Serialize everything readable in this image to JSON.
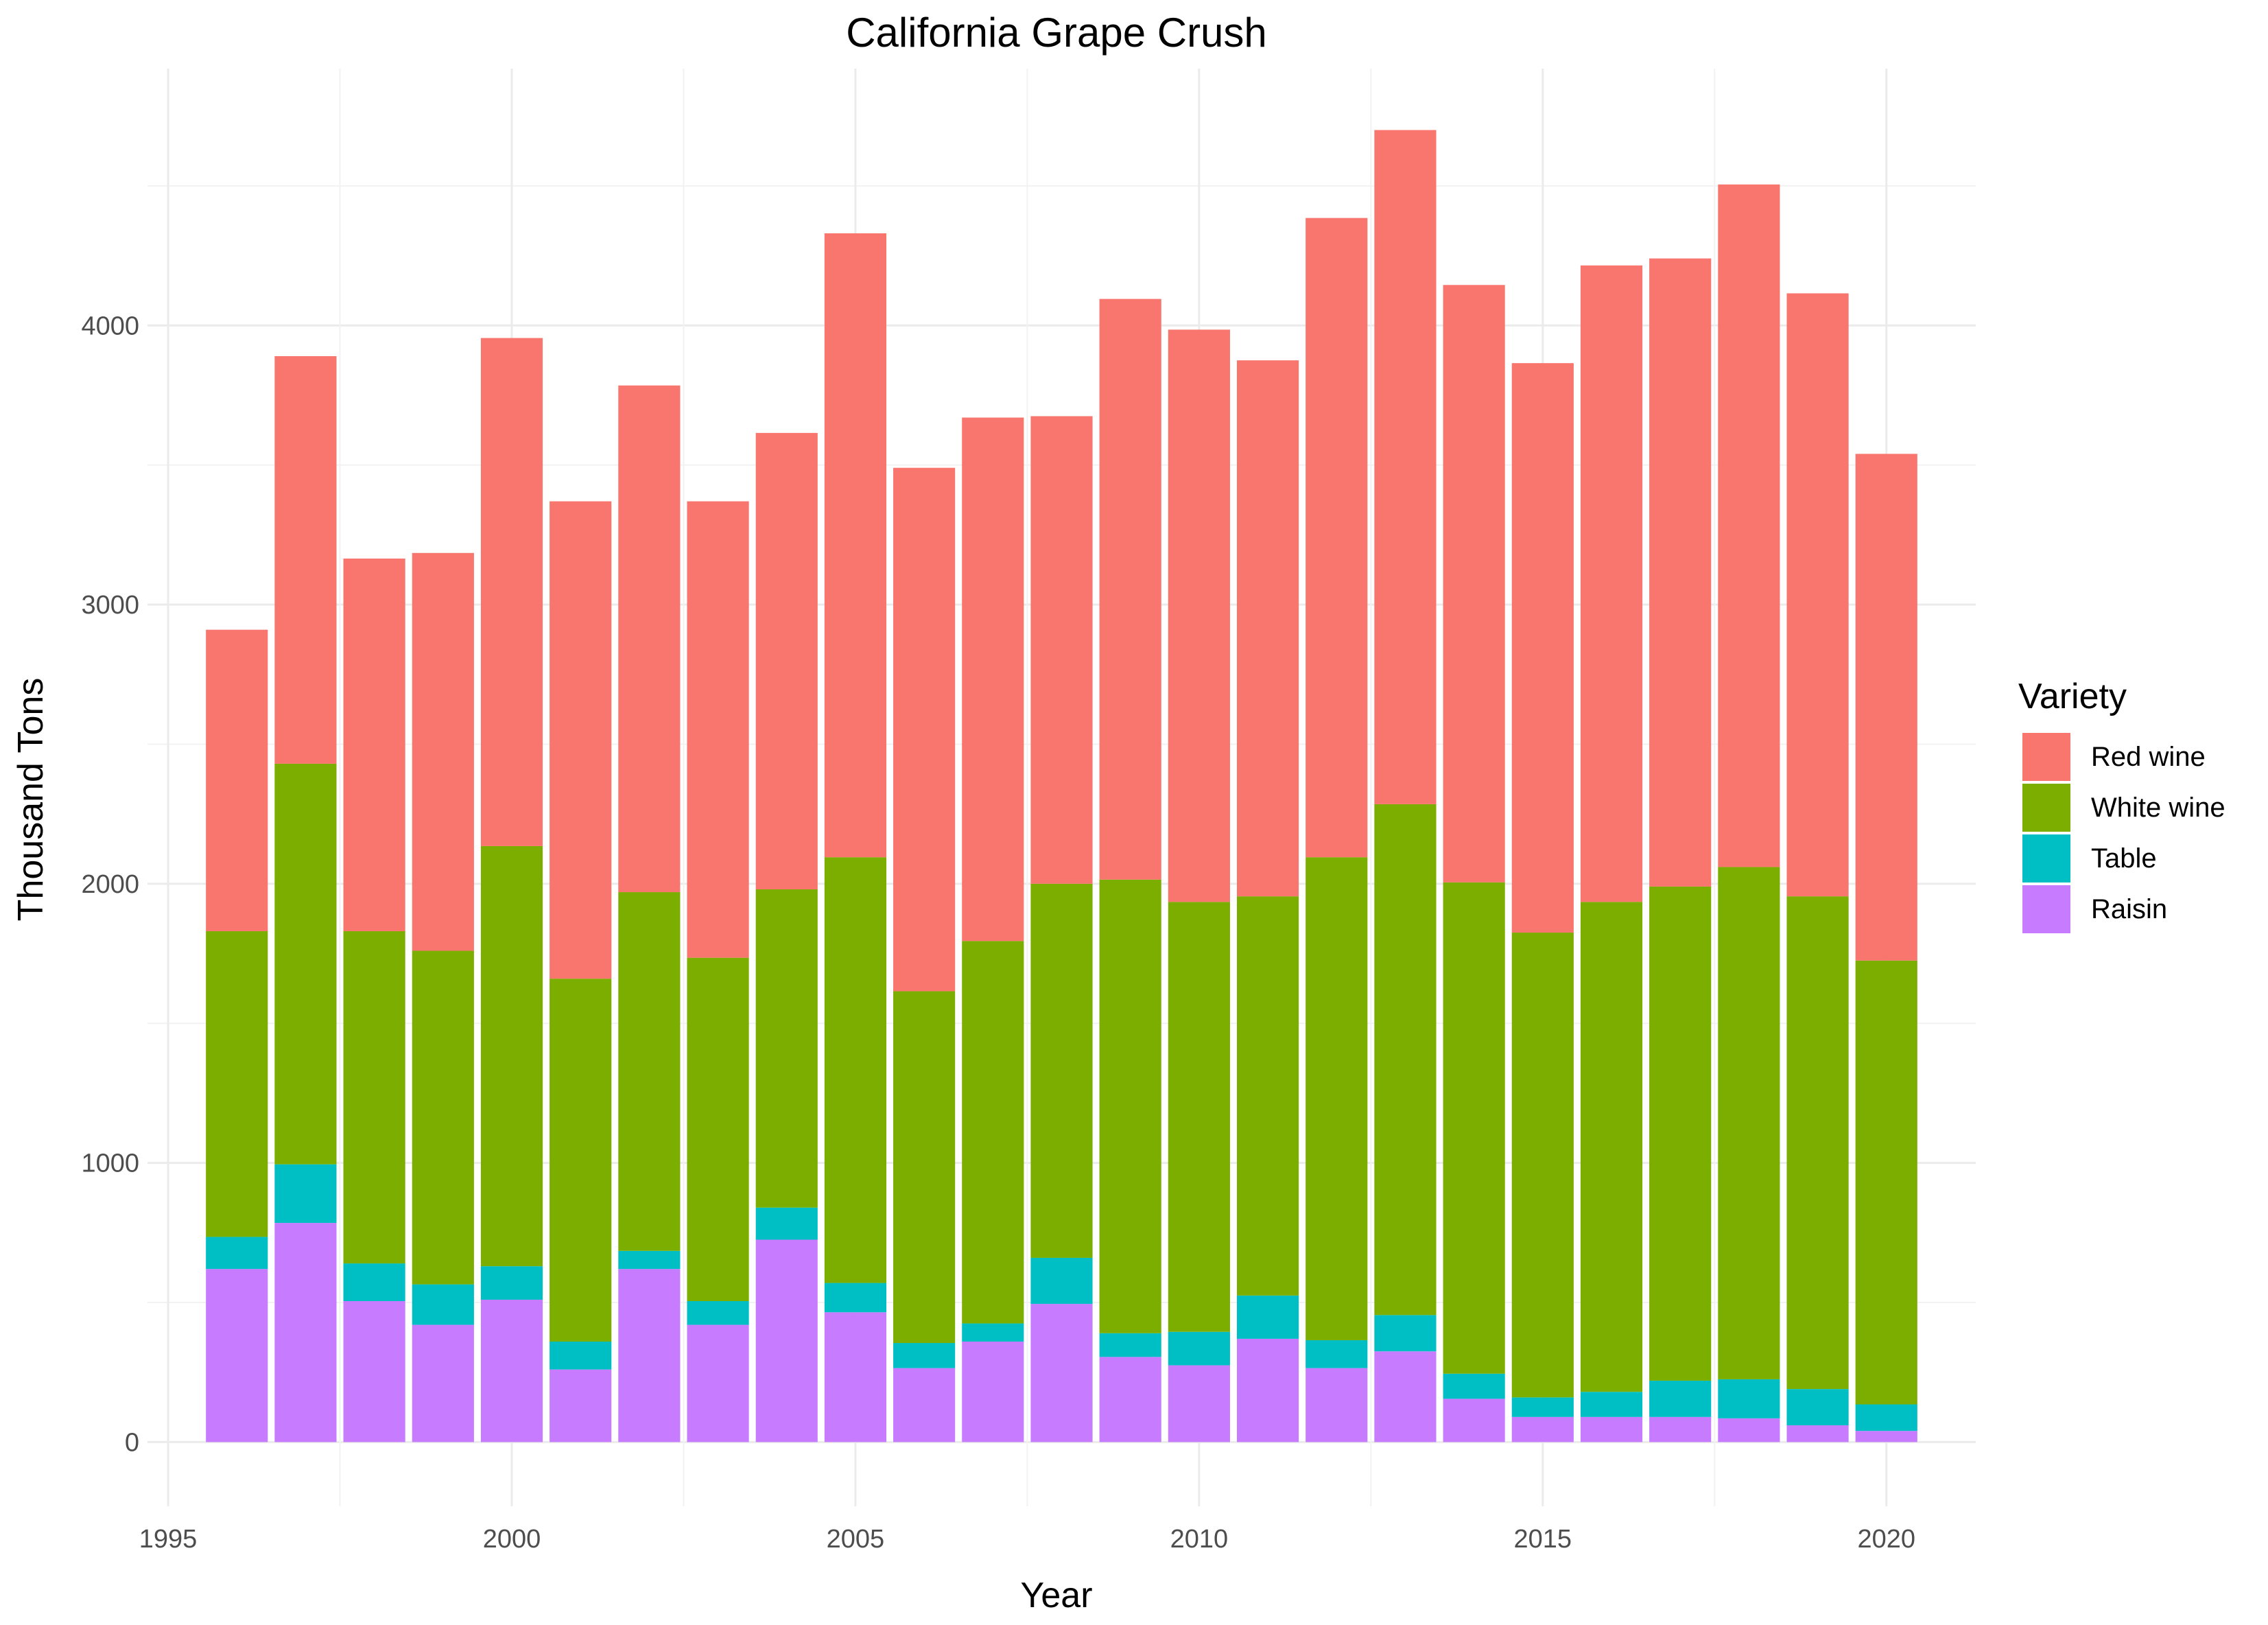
{
  "chart_data": {
    "type": "bar",
    "stacked": true,
    "title": "California Grape Crush",
    "xlabel": "Year",
    "ylabel": "Thousand Tons",
    "legend_title": "Variety",
    "legend_position": "right",
    "xlim": [
      1994.7,
      2021.3
    ],
    "ylim": [
      -230,
      4920
    ],
    "x_ticks": [
      1995,
      2000,
      2005,
      2010,
      2015,
      2020
    ],
    "y_ticks": [
      0,
      1000,
      2000,
      3000,
      4000
    ],
    "grid": true,
    "categories": [
      1996,
      1997,
      1998,
      1999,
      2000,
      2001,
      2002,
      2003,
      2004,
      2005,
      2006,
      2007,
      2008,
      2009,
      2010,
      2011,
      2012,
      2013,
      2014,
      2015,
      2016,
      2017,
      2018,
      2019,
      2020
    ],
    "series": [
      {
        "name": "Raisin",
        "color": "#C77CFF",
        "values": [
          620,
          785,
          505,
          420,
          510,
          260,
          620,
          420,
          725,
          465,
          265,
          360,
          495,
          305,
          275,
          370,
          265,
          325,
          155,
          90,
          90,
          90,
          85,
          60,
          40
        ]
      },
      {
        "name": "Table",
        "color": "#00BFC4",
        "values": [
          115,
          210,
          135,
          145,
          120,
          100,
          65,
          85,
          115,
          105,
          90,
          65,
          165,
          85,
          120,
          155,
          100,
          130,
          90,
          70,
          90,
          130,
          140,
          130,
          95
        ]
      },
      {
        "name": "White wine",
        "color": "#7CAE00",
        "values": [
          1095,
          1435,
          1190,
          1195,
          1505,
          1300,
          1285,
          1230,
          1140,
          1525,
          1260,
          1370,
          1340,
          1625,
          1540,
          1430,
          1730,
          1830,
          1760,
          1665,
          1755,
          1770,
          1835,
          1765,
          1590
        ]
      },
      {
        "name": "Red wine",
        "color": "#F8766D",
        "values": [
          1080,
          1460,
          1335,
          1425,
          1820,
          1710,
          1815,
          1635,
          1635,
          2235,
          1875,
          1875,
          1675,
          2080,
          2050,
          1920,
          2290,
          2415,
          2140,
          2040,
          2280,
          2250,
          2445,
          2160,
          1815
        ]
      }
    ]
  },
  "legend": [
    {
      "label": "Red wine",
      "color": "#F8766D"
    },
    {
      "label": "White wine",
      "color": "#7CAE00"
    },
    {
      "label": "Table",
      "color": "#00BFC4"
    },
    {
      "label": "Raisin",
      "color": "#C77CFF"
    }
  ]
}
